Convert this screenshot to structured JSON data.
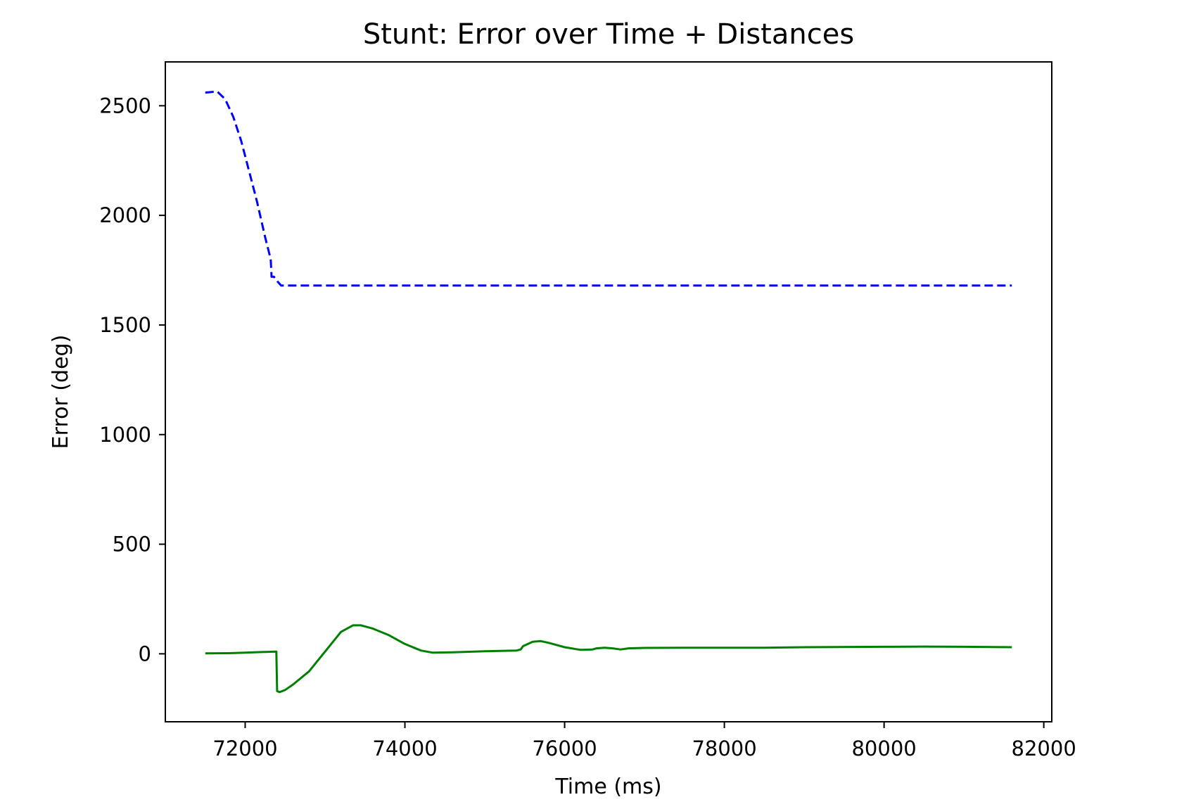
{
  "chart_data": {
    "type": "line",
    "title": "Stunt: Error over Time + Distances",
    "xlabel": "Time (ms)",
    "ylabel": "Error (deg)",
    "xlim": [
      71000,
      82100
    ],
    "ylim": [
      -310,
      2700
    ],
    "xticks": [
      72000,
      74000,
      76000,
      78000,
      80000,
      82000
    ],
    "yticks": [
      0,
      500,
      1000,
      1500,
      2000,
      2500
    ],
    "grid": false,
    "legend": "none",
    "series": [
      {
        "style": "dashed",
        "color": "#0000ff",
        "x": [
          71500,
          71650,
          71750,
          71850,
          71950,
          72050,
          72150,
          72250,
          72320,
          72330,
          72360,
          72400,
          72450,
          73000,
          74000,
          75000,
          76000,
          77000,
          78000,
          79000,
          80000,
          81000,
          81600
        ],
        "y": [
          2560,
          2565,
          2530,
          2450,
          2340,
          2200,
          2060,
          1900,
          1800,
          1720,
          1720,
          1700,
          1680,
          1680,
          1680,
          1680,
          1680,
          1680,
          1680,
          1680,
          1680,
          1680,
          1680
        ]
      },
      {
        "style": "solid",
        "color": "#008000",
        "x": [
          71500,
          71800,
          72000,
          72200,
          72390,
          72400,
          72430,
          72500,
          72600,
          72800,
          73000,
          73200,
          73350,
          73450,
          73600,
          73800,
          74000,
          74200,
          74350,
          74600,
          75000,
          75400,
          75450,
          75480,
          75600,
          75700,
          75800,
          76000,
          76200,
          76350,
          76400,
          76500,
          76600,
          76700,
          76800,
          77000,
          77500,
          78000,
          78500,
          79000,
          80000,
          80500,
          81000,
          81600
        ],
        "y": [
          2,
          3,
          5,
          8,
          10,
          -170,
          -175,
          -165,
          -140,
          -80,
          10,
          100,
          130,
          130,
          115,
          85,
          45,
          15,
          5,
          7,
          12,
          15,
          20,
          35,
          55,
          58,
          50,
          30,
          18,
          20,
          25,
          28,
          25,
          20,
          25,
          27,
          28,
          28,
          28,
          30,
          32,
          33,
          32,
          30
        ]
      }
    ]
  }
}
